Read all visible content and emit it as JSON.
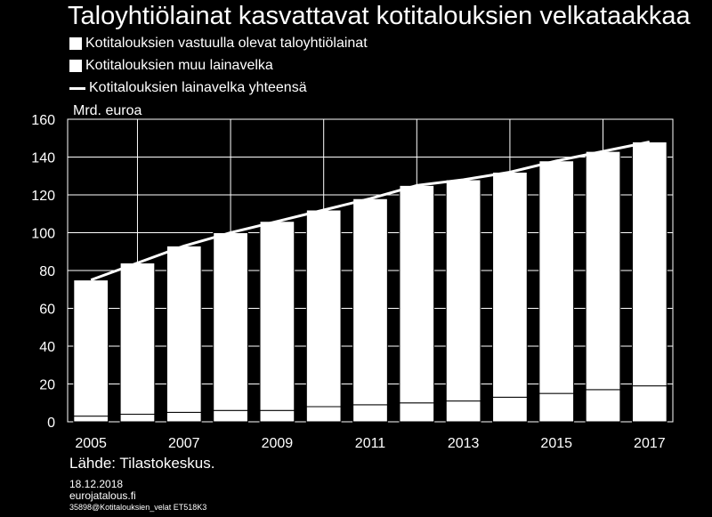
{
  "title": "Taloyhtiölainat kasvattavat kotitalouksien velkataakkaa",
  "legend": [
    {
      "label": "Kotitalouksien vastuulla olevat taloyhtiölainat",
      "kind": "bar"
    },
    {
      "label": "Kotitalouksien muu lainavelka",
      "kind": "bar"
    },
    {
      "label": "Kotitalouksien lainavelka yhteensä",
      "kind": "line"
    }
  ],
  "unit_label": "Mrd. euroa",
  "source": "Lähde: Tilastokeskus.",
  "footer": {
    "date": "18.12.2018",
    "site": "eurojatalous.fi",
    "code": "35898@Kotitalouksien_velat  ET518K3"
  },
  "colors": {
    "background": "#000000",
    "foreground": "#ffffff"
  },
  "chart_data": {
    "type": "bar",
    "stacked": true,
    "x": [
      2005,
      2006,
      2007,
      2008,
      2009,
      2010,
      2011,
      2012,
      2013,
      2014,
      2015,
      2016,
      2017
    ],
    "x_tick_labels": [
      "2005",
      "2007",
      "2009",
      "2011",
      "2013",
      "2015",
      "2017"
    ],
    "series": [
      {
        "name": "Kotitalouksien vastuulla olevat taloyhtiölainat",
        "type": "bar",
        "values": [
          3,
          4,
          5,
          6,
          6,
          8,
          9,
          10,
          11,
          13,
          15,
          17,
          19
        ]
      },
      {
        "name": "Kotitalouksien muu lainavelka",
        "type": "bar",
        "values": [
          72,
          80,
          88,
          94,
          100,
          104,
          109,
          115,
          117,
          119,
          123,
          126,
          129
        ]
      },
      {
        "name": "Kotitalouksien lainavelka yhteensä",
        "type": "line",
        "values": [
          75,
          84,
          93,
          100,
          106,
          112,
          118,
          125,
          128,
          132,
          138,
          143,
          148
        ]
      }
    ],
    "ylim": [
      0,
      160
    ],
    "y_ticks": [
      0,
      20,
      40,
      60,
      80,
      100,
      120,
      140,
      160
    ],
    "grid": true,
    "legend_position": "top-left"
  }
}
